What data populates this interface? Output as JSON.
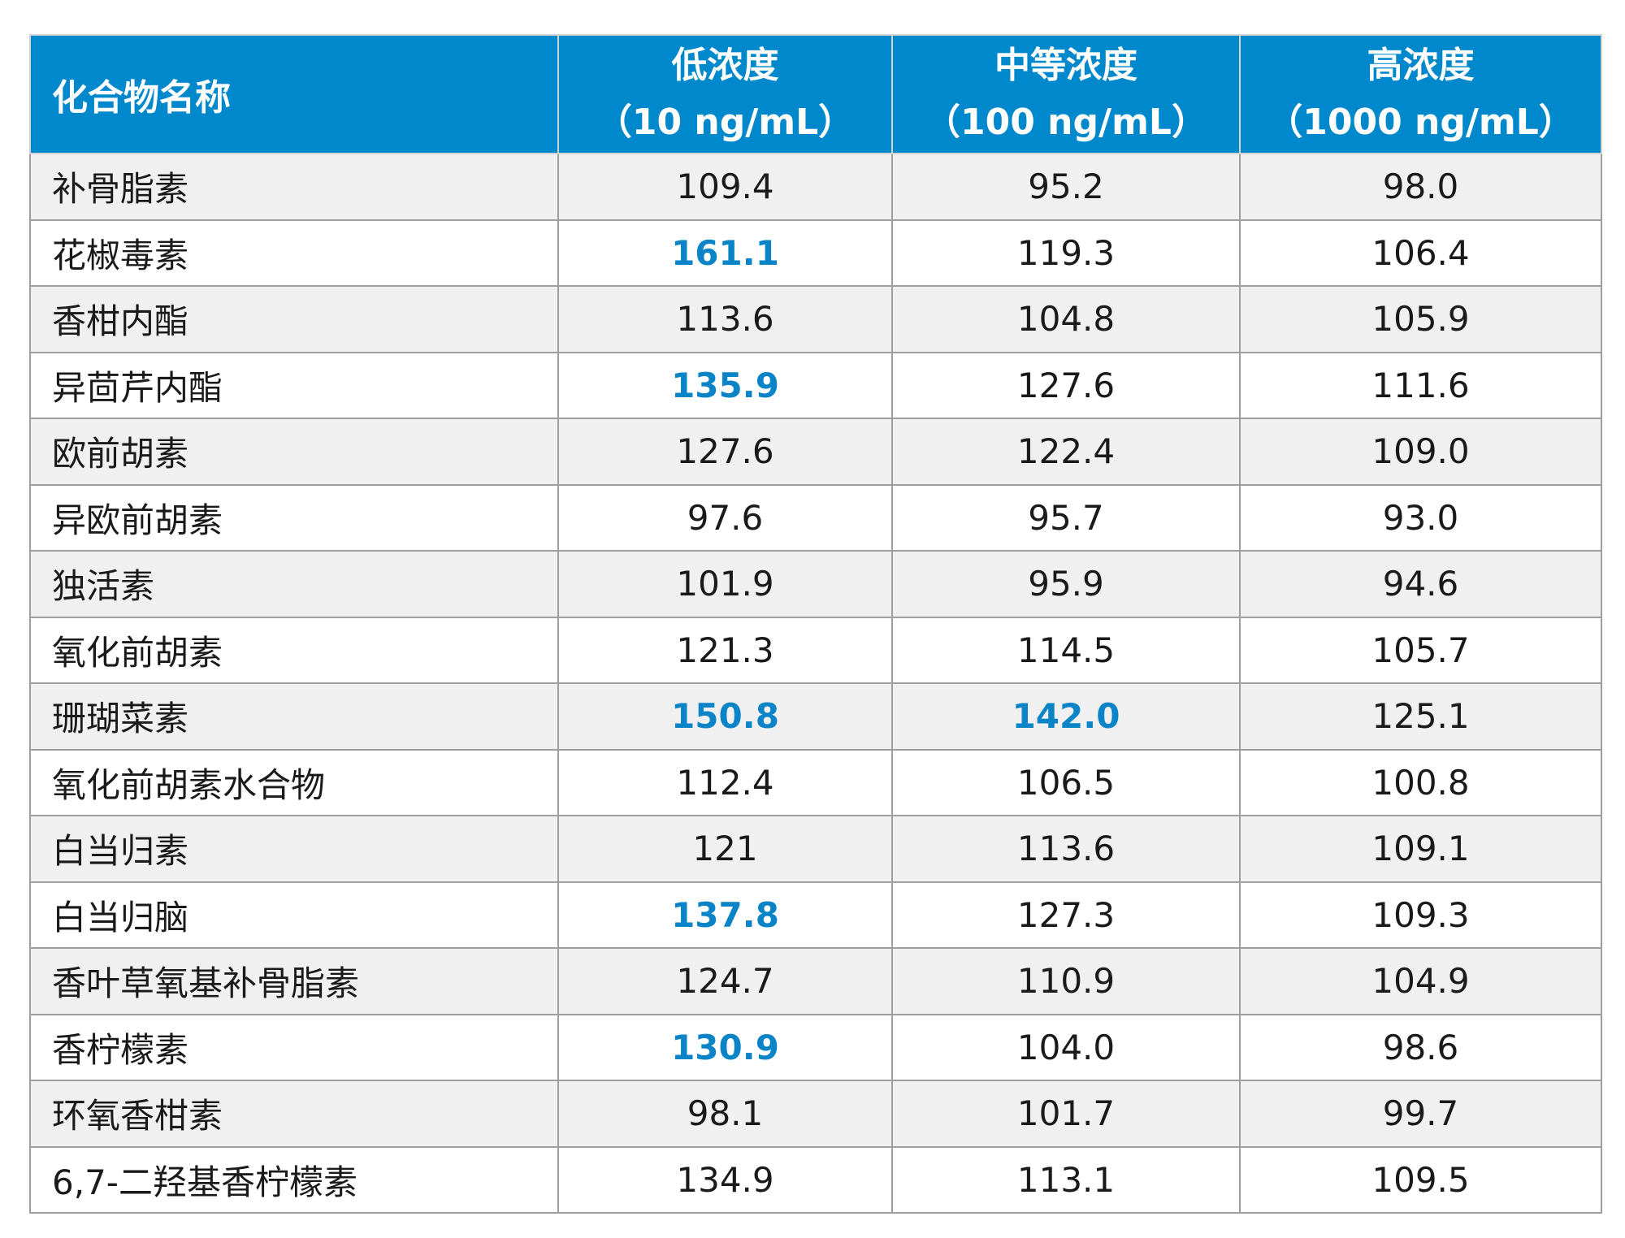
{
  "headers": {
    "name": "化合物名称",
    "low": {
      "label": "低浓度",
      "unit": "（10 ng/mL）"
    },
    "mid": {
      "label": "中等浓度",
      "unit": "（100 ng/mL）"
    },
    "high": {
      "label": "高浓度",
      "unit": "（1000 ng/mL）"
    }
  },
  "highlight_color": "#0a84c6",
  "header_color": "#0088cc",
  "rows": [
    {
      "name": "补骨脂素",
      "low": "109.4",
      "mid": "95.2",
      "high": "98.0",
      "hl": []
    },
    {
      "name": "花椒毒素",
      "low": "161.1",
      "mid": "119.3",
      "high": "106.4",
      "hl": [
        "low"
      ]
    },
    {
      "name": "香柑内酯",
      "low": "113.6",
      "mid": "104.8",
      "high": "105.9",
      "hl": []
    },
    {
      "name": "异茴芹内酯",
      "low": "135.9",
      "mid": "127.6",
      "high": "111.6",
      "hl": [
        "low"
      ]
    },
    {
      "name": "欧前胡素",
      "low": "127.6",
      "mid": "122.4",
      "high": "109.0",
      "hl": []
    },
    {
      "name": "异欧前胡素",
      "low": "97.6",
      "mid": "95.7",
      "high": "93.0",
      "hl": []
    },
    {
      "name": "独活素",
      "low": "101.9",
      "mid": "95.9",
      "high": "94.6",
      "hl": []
    },
    {
      "name": "氧化前胡素",
      "low": "121.3",
      "mid": "114.5",
      "high": "105.7",
      "hl": []
    },
    {
      "name": "珊瑚菜素",
      "low": "150.8",
      "mid": "142.0",
      "high": "125.1",
      "hl": [
        "low",
        "mid"
      ]
    },
    {
      "name": "氧化前胡素水合物",
      "low": "112.4",
      "mid": "106.5",
      "high": "100.8",
      "hl": []
    },
    {
      "name": "白当归素",
      "low": "121",
      "mid": "113.6",
      "high": "109.1",
      "hl": []
    },
    {
      "name": "白当归脑",
      "low": "137.8",
      "mid": "127.3",
      "high": "109.3",
      "hl": [
        "low"
      ]
    },
    {
      "name": "香叶草氧基补骨脂素",
      "low": "124.7",
      "mid": "110.9",
      "high": "104.9",
      "hl": []
    },
    {
      "name": "香柠檬素",
      "low": "130.9",
      "mid": "104.0",
      "high": "98.6",
      "hl": [
        "low"
      ]
    },
    {
      "name": "环氧香柑素",
      "low": "98.1",
      "mid": "101.7",
      "high": "99.7",
      "hl": []
    },
    {
      "name": "6,7-二羟基香柠檬素",
      "low": "134.9",
      "mid": "113.1",
      "high": "109.5",
      "hl": []
    }
  ]
}
